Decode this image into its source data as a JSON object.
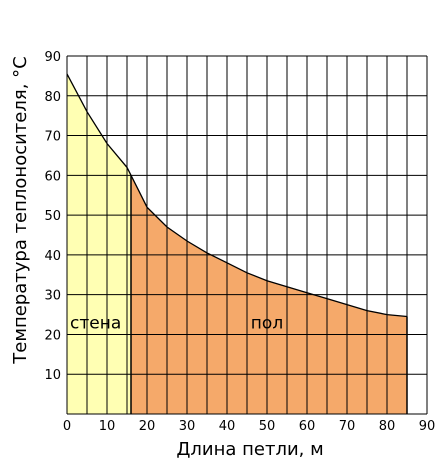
{
  "chart_data": {
    "type": "area",
    "xlabel": "Длина петли, м",
    "ylabel": "Температура теплоносителя, °C",
    "xlim": [
      0,
      90
    ],
    "ylim": [
      0,
      90
    ],
    "xticks": [
      0,
      10,
      20,
      30,
      40,
      50,
      60,
      70,
      80,
      90
    ],
    "yticks": [
      10,
      20,
      30,
      40,
      50,
      60,
      70,
      80,
      90
    ],
    "grid": true,
    "series": [
      {
        "x": [
          0,
          5,
          10,
          15,
          16,
          18,
          20,
          25,
          30,
          35,
          40,
          45,
          50,
          55,
          60,
          65,
          70,
          75,
          80,
          85
        ],
        "y": [
          85.5,
          76,
          68,
          62,
          60,
          56,
          52,
          47,
          43.5,
          40.5,
          38,
          35.5,
          33.5,
          32,
          30.5,
          29,
          27.5,
          26,
          25,
          24.5
        ]
      }
    ],
    "regions": [
      {
        "label": "стена",
        "x_from": 0,
        "x_to": 16,
        "color": "#ffffb3"
      },
      {
        "label": "пол",
        "x_from": 16,
        "x_to": 85,
        "color": "#f5a96a"
      }
    ],
    "colors": {
      "grid": "#000000",
      "curve": "#000000"
    }
  }
}
